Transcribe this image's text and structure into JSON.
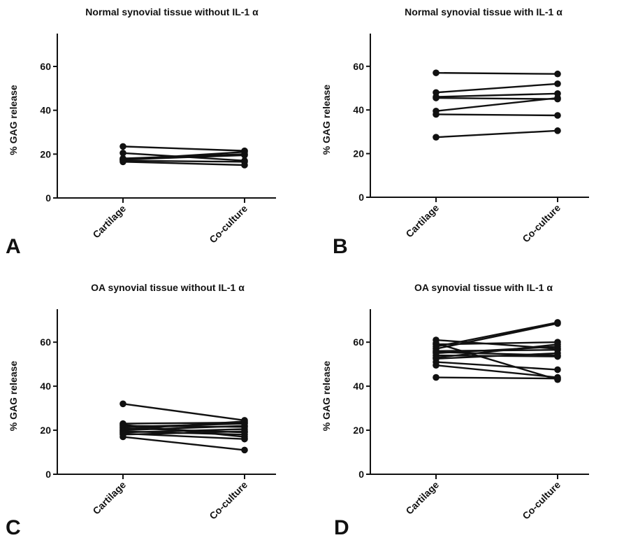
{
  "chart_data": [
    {
      "panel": "A",
      "type": "line",
      "title": "Normal synovial tissue without IL-1 α",
      "ylabel": "% GAG release",
      "xlabel": "",
      "categories": [
        "Cartilage",
        "Co-culture"
      ],
      "ylim": [
        0,
        75
      ],
      "yticks": [
        0,
        20,
        40,
        60
      ],
      "series": [
        {
          "values": [
            23.5,
            21.5
          ]
        },
        {
          "values": [
            20.5,
            17.0
          ]
        },
        {
          "values": [
            18.0,
            20.0
          ]
        },
        {
          "values": [
            17.5,
            19.5
          ]
        },
        {
          "values": [
            17.0,
            16.5
          ]
        },
        {
          "values": [
            16.5,
            15.0
          ]
        },
        {
          "values": [
            17.5,
            21.0
          ]
        }
      ]
    },
    {
      "panel": "B",
      "type": "line",
      "title": "Normal synovial tissue with IL-1 α",
      "ylabel": "% GAG release",
      "xlabel": "",
      "categories": [
        "Cartilage",
        "Co-culture"
      ],
      "ylim": [
        0,
        75
      ],
      "yticks": [
        0,
        20,
        40,
        60
      ],
      "series": [
        {
          "values": [
            57.0,
            56.5
          ]
        },
        {
          "values": [
            48.0,
            52.0
          ]
        },
        {
          "values": [
            46.0,
            47.5
          ]
        },
        {
          "values": [
            45.5,
            45.0
          ]
        },
        {
          "values": [
            39.5,
            45.5
          ]
        },
        {
          "values": [
            38.0,
            37.5
          ]
        },
        {
          "values": [
            27.5,
            30.5
          ]
        }
      ]
    },
    {
      "panel": "C",
      "type": "line",
      "title": "OA synovial tissue without IL-1 α",
      "ylabel": "% GAG release",
      "xlabel": "",
      "categories": [
        "Cartilage",
        "Co-culture"
      ],
      "ylim": [
        0,
        75
      ],
      "yticks": [
        0,
        20,
        40,
        60
      ],
      "series": [
        {
          "values": [
            32.0,
            24.5
          ]
        },
        {
          "values": [
            23.0,
            23.5
          ]
        },
        {
          "values": [
            22.5,
            17.0
          ]
        },
        {
          "values": [
            22.0,
            21.5
          ]
        },
        {
          "values": [
            21.5,
            23.0
          ]
        },
        {
          "values": [
            21.0,
            19.0
          ]
        },
        {
          "values": [
            20.5,
            24.0
          ]
        },
        {
          "values": [
            20.0,
            22.0
          ]
        },
        {
          "values": [
            19.5,
            18.0
          ]
        },
        {
          "values": [
            19.0,
            20.5
          ]
        },
        {
          "values": [
            18.5,
            16.0
          ]
        },
        {
          "values": [
            18.0,
            19.5
          ]
        },
        {
          "values": [
            17.0,
            11.0
          ]
        }
      ]
    },
    {
      "panel": "D",
      "type": "line",
      "title": "OA synovial tissue with IL-1 α",
      "ylabel": "% GAG release",
      "xlabel": "",
      "categories": [
        "Cartilage",
        "Co-culture"
      ],
      "ylim": [
        0,
        75
      ],
      "yticks": [
        0,
        20,
        40,
        60
      ],
      "series": [
        {
          "values": [
            61.0,
            57.0
          ]
        },
        {
          "values": [
            59.5,
            43.0
          ]
        },
        {
          "values": [
            59.0,
            60.0
          ]
        },
        {
          "values": [
            58.0,
            69.0
          ]
        },
        {
          "values": [
            57.0,
            68.5
          ]
        },
        {
          "values": [
            56.0,
            56.5
          ]
        },
        {
          "values": [
            55.5,
            54.0
          ]
        },
        {
          "values": [
            55.0,
            58.0
          ]
        },
        {
          "values": [
            54.0,
            53.5
          ]
        },
        {
          "values": [
            53.0,
            59.0
          ]
        },
        {
          "values": [
            52.5,
            55.0
          ]
        },
        {
          "values": [
            51.0,
            47.5
          ]
        },
        {
          "values": [
            49.5,
            44.0
          ]
        },
        {
          "values": [
            44.0,
            43.5
          ]
        }
      ]
    }
  ]
}
